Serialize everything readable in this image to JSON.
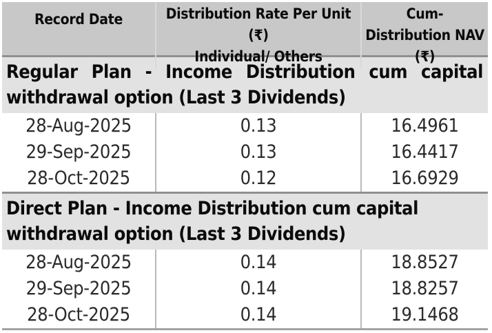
{
  "table": {
    "header": {
      "record_date": "Record Date",
      "rate_line1": "Distribution Rate Per Unit (₹)",
      "rate_line2": "Individual/ Others",
      "nav": "Cum-Distribution NAV (₹)"
    },
    "sections": [
      {
        "title": "Regular Plan - Income Distribution cum capital withdrawal option (Last 3 Dividends)",
        "rows": [
          {
            "date": "28-Aug-2025",
            "rate": "0.13",
            "nav": "16.4961"
          },
          {
            "date": "29-Sep-2025",
            "rate": "0.13",
            "nav": "16.4417"
          },
          {
            "date": "28-Oct-2025",
            "rate": "0.12",
            "nav": "16.6929"
          }
        ]
      },
      {
        "title": "Direct Plan - Income Distribution cum capital withdrawal option (Last 3 Dividends)",
        "rows": [
          {
            "date": "28-Aug-2025",
            "rate": "0.14",
            "nav": "18.8527"
          },
          {
            "date": "29-Sep-2025",
            "rate": "0.14",
            "nav": "18.8257"
          },
          {
            "date": "28-Oct-2025",
            "rate": "0.14",
            "nav": "19.1468"
          }
        ]
      }
    ],
    "colors": {
      "header_bg": "#c8c8c8",
      "section_bg": "#e2e2e2",
      "dark_rule": "#8f8f8f",
      "header_separator": "#d9d9d9",
      "data_separator": "#b9b9b9",
      "bottom_rule": "#a3a3a3",
      "text": "#0b0b0b"
    }
  }
}
